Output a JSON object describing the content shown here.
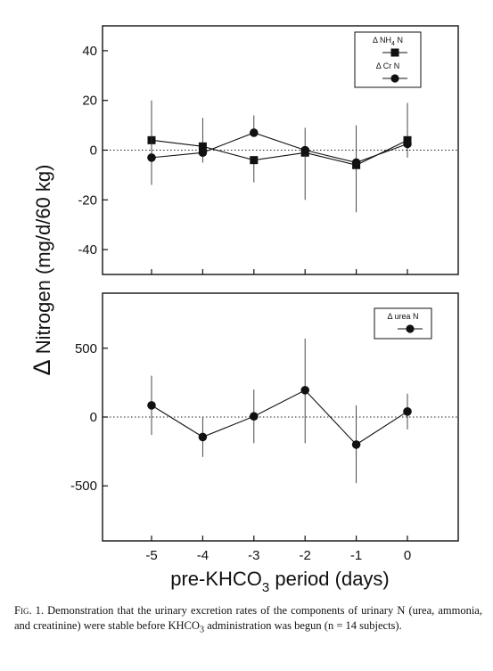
{
  "chart_data": [
    {
      "type": "line",
      "x": [
        -5,
        -4,
        -3,
        -2,
        -1,
        0
      ],
      "ylim": [
        -50,
        50
      ],
      "yticks": [
        40,
        20,
        0,
        -20,
        -40
      ],
      "series": [
        {
          "name": "Δ NH4 N",
          "legend_label": "Δ NH",
          "legend_sub": "4",
          "legend_tail": " N",
          "marker": "square",
          "values": [
            4,
            1.5,
            -4,
            -1,
            -6,
            4
          ],
          "err_low": [
            null,
            -5,
            -13,
            null,
            -25,
            null
          ],
          "err_high": [
            null,
            13,
            null,
            null,
            null,
            19
          ]
        },
        {
          "name": "Δ Cr N",
          "legend_label": "Δ Cr N",
          "marker": "circle",
          "values": [
            -3,
            -1,
            7,
            0,
            -5,
            2.5
          ],
          "err_low": [
            -14,
            null,
            null,
            -20,
            null,
            -3
          ],
          "err_high": [
            20,
            null,
            14,
            9,
            10,
            null
          ]
        }
      ],
      "zero_line": "dotted",
      "legend_position": "top-right"
    },
    {
      "type": "line",
      "x": [
        -5,
        -4,
        -3,
        -2,
        -1,
        0
      ],
      "ylim": [
        -900,
        900
      ],
      "yticks": [
        500,
        0,
        -500
      ],
      "series": [
        {
          "name": "Δ urea N",
          "legend_label": "Δ urea N",
          "marker": "circle",
          "values": [
            85,
            -145,
            5,
            195,
            -200,
            40
          ],
          "err_low": [
            -130,
            -290,
            -190,
            -190,
            -480,
            -90
          ],
          "err_high": [
            300,
            0,
            200,
            570,
            85,
            170
          ]
        }
      ],
      "zero_line": "dotted",
      "legend_position": "top-right"
    }
  ],
  "ylabel_delta": "Δ",
  "ylabel": " Nitrogen (mg/d/60 kg)",
  "xlabel_pre": "pre-KHCO",
  "xlabel_sub": "3",
  "xlabel_post": " period (days)",
  "xticks": [
    "-5",
    "-4",
    "-3",
    "-2",
    "-1",
    "0"
  ],
  "caption": {
    "fig": "Fig. 1.",
    "text1": " Demonstration that the urinary excretion rates of the components of urinary N (urea, ammonia, and creatinine) were stable before KHCO",
    "sub": "3",
    "text2": " administration was begun (n = 14 subjects)."
  }
}
